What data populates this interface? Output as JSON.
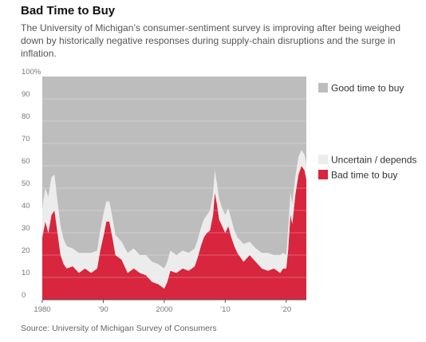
{
  "header": {
    "title": "Bad Time to Buy",
    "subtitle": "The University of Michigan’s consumer-sentiment survey is improving after being weighed down by historically negative responses during supply-chain disruptions and the surge in inflation."
  },
  "footer": {
    "source": "Source: University of Michigan Survey of Consumers"
  },
  "chart_data": {
    "type": "area",
    "stacked": true,
    "ylim": [
      0,
      100
    ],
    "xlim": [
      1980,
      2023.3
    ],
    "y_ticks": [
      "100%",
      "90",
      "80",
      "70",
      "60",
      "50",
      "40",
      "30",
      "20",
      "10",
      "0"
    ],
    "x_ticks": [
      {
        "value": 1980,
        "label": "1980"
      },
      {
        "value": 1990,
        "label": "’90"
      },
      {
        "value": 2000,
        "label": "2000"
      },
      {
        "value": 2010,
        "label": "’10"
      },
      {
        "value": 2020,
        "label": "’20"
      }
    ],
    "legend": {
      "position": "right",
      "entries": [
        {
          "series": "good",
          "label": "Good time to buy"
        },
        {
          "series": "uncertain",
          "label": "Uncertain / depends"
        },
        {
          "series": "bad",
          "label": "Bad time to buy"
        }
      ]
    },
    "colors": {
      "good": "#bdbdbd",
      "uncertain": "#ececec",
      "bad": "#d7263d"
    },
    "x": [
      1980,
      1980.5,
      1981,
      1981.5,
      1982,
      1982.5,
      1983,
      1983.5,
      1984,
      1985,
      1986,
      1987,
      1988,
      1989,
      1989.5,
      1990,
      1990.5,
      1991,
      1991.5,
      1992,
      1993,
      1994,
      1995,
      1996,
      1997,
      1998,
      1999,
      2000,
      2000.5,
      2001,
      2002,
      2003,
      2004,
      2005,
      2005.5,
      2006,
      2006.5,
      2007,
      2007.5,
      2008,
      2008.3,
      2008.7,
      2009,
      2009.5,
      2010,
      2010.5,
      2011,
      2011.5,
      2012,
      2013,
      2014,
      2015,
      2016,
      2017,
      2018,
      2019,
      2019.5,
      2020,
      2020.3,
      2020.7,
      2021,
      2021.5,
      2022,
      2022.5,
      2023,
      2023.3
    ],
    "series": [
      {
        "name": "Bad time to buy",
        "key": "bad",
        "values": [
          28,
          35,
          30,
          38,
          40,
          30,
          20,
          16,
          14,
          15,
          12,
          14,
          12,
          14,
          22,
          28,
          35,
          35,
          28,
          20,
          18,
          12,
          14,
          12,
          11,
          8,
          7,
          5,
          8,
          13,
          12,
          14,
          13,
          15,
          19,
          24,
          28,
          30,
          31,
          38,
          48,
          42,
          36,
          33,
          30,
          33,
          28,
          24,
          21,
          17,
          20,
          17,
          14,
          13,
          14,
          12,
          14,
          14,
          22,
          38,
          34,
          47,
          56,
          60,
          58,
          54
        ]
      },
      {
        "name": "Uncertain / depends",
        "key": "uncertain",
        "values": [
          13,
          15,
          16,
          17,
          16,
          14,
          13,
          11,
          10,
          8,
          9,
          7,
          9,
          8,
          9,
          10,
          9,
          9,
          9,
          9,
          8,
          9,
          9,
          8,
          9,
          9,
          9,
          9,
          9,
          9,
          8,
          8,
          8,
          8,
          8,
          8,
          8,
          8,
          9,
          9,
          10,
          9,
          9,
          8,
          8,
          8,
          8,
          7,
          7,
          8,
          6,
          6,
          7,
          8,
          6,
          8,
          7,
          6,
          9,
          10,
          9,
          8,
          8,
          7,
          7,
          7
        ]
      },
      {
        "name": "Good time to buy",
        "key": "good",
        "values": [
          59,
          50,
          54,
          45,
          44,
          56,
          67,
          73,
          76,
          77,
          79,
          79,
          79,
          78,
          69,
          62,
          56,
          56,
          63,
          71,
          74,
          79,
          77,
          80,
          80,
          83,
          84,
          86,
          83,
          78,
          80,
          78,
          79,
          77,
          73,
          68,
          64,
          62,
          60,
          53,
          42,
          49,
          55,
          59,
          62,
          59,
          64,
          69,
          72,
          75,
          74,
          77,
          79,
          79,
          80,
          80,
          79,
          80,
          69,
          52,
          57,
          45,
          36,
          33,
          35,
          39
        ]
      }
    ]
  }
}
